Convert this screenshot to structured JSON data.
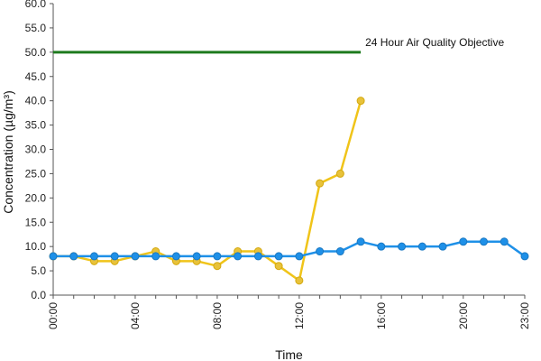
{
  "chart_data": {
    "type": "line",
    "xlabel": "Time",
    "ylabel": "Concentration (µg/m³)",
    "xlim": [
      0,
      23
    ],
    "ylim": [
      0,
      60
    ],
    "grid": false,
    "x_tick_labels": [
      {
        "x": 0,
        "label": "00:00"
      },
      {
        "x": 4,
        "label": "04:00"
      },
      {
        "x": 8,
        "label": "08:00"
      },
      {
        "x": 12,
        "label": "12:00"
      },
      {
        "x": 16,
        "label": "16:00"
      },
      {
        "x": 20,
        "label": "20:00"
      },
      {
        "x": 23,
        "label": "23:00"
      }
    ],
    "y_tick_labels": [
      "0.0",
      "5.0",
      "10.0",
      "15.0",
      "20.0",
      "25.0",
      "30.0",
      "35.0",
      "40.0",
      "45.0",
      "50.0",
      "55.0",
      "60.0"
    ],
    "objective": {
      "label": "24 Hour Air Quality Objective",
      "value": 50,
      "x_start": 0,
      "x_end": 15,
      "color": "#1e7b1e"
    },
    "series": [
      {
        "color": "#f0c419",
        "marker_color": "#e8c23a",
        "x": [
          0,
          1,
          2,
          3,
          4,
          5,
          6,
          7,
          8,
          9,
          10,
          11,
          12,
          13,
          14,
          15
        ],
        "values": [
          8,
          8,
          7,
          7,
          8,
          9,
          7,
          7,
          6,
          9,
          9,
          6,
          3,
          23,
          25,
          40
        ]
      },
      {
        "color": "#1e90e8",
        "marker_color": "#1e90e8",
        "x": [
          0,
          1,
          2,
          3,
          4,
          5,
          6,
          7,
          8,
          9,
          10,
          11,
          12,
          13,
          14,
          15,
          16,
          17,
          18,
          19,
          20,
          21,
          22,
          23
        ],
        "values": [
          8,
          8,
          8,
          8,
          8,
          8,
          8,
          8,
          8,
          8,
          8,
          8,
          8,
          9,
          9,
          11,
          10,
          10,
          10,
          10,
          11,
          11,
          11,
          8
        ]
      }
    ]
  }
}
